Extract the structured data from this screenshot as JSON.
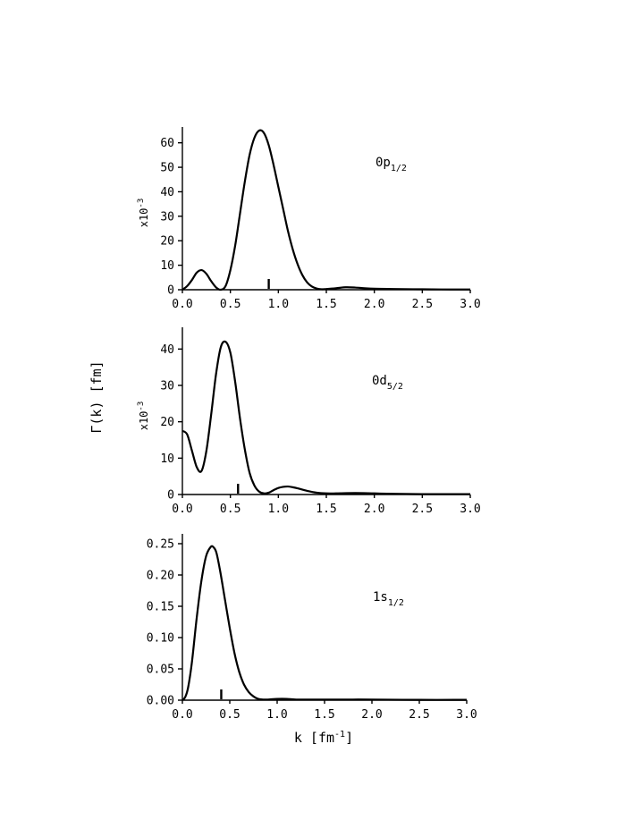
{
  "figure": {
    "ylabel": "Γ(k) [fm]",
    "xlabel": "k [fm",
    "xlabel_sup": "-1",
    "xlabel_close": "]"
  },
  "chart_data": [
    {
      "type": "line",
      "title": "0p",
      "title_sub": "1/2",
      "scale_text": "x10",
      "scale_sup": "-3",
      "xlim": [
        0,
        3.0
      ],
      "ylim": [
        0,
        65
      ],
      "xticks": [
        0.0,
        0.5,
        1.0,
        1.5,
        2.0,
        2.5,
        3.0
      ],
      "xtick_labels": [
        "0.0",
        "0.5",
        "1.0",
        "1.5",
        "2.0",
        "2.5",
        "3.0"
      ],
      "yticks": [
        0,
        10,
        20,
        30,
        40,
        50,
        60
      ],
      "ytick_labels": [
        "0",
        "10",
        "20",
        "30",
        "40",
        "50",
        "60"
      ],
      "marker_x": 0.9,
      "series": [
        {
          "x": [
            0.0,
            0.05,
            0.1,
            0.15,
            0.2,
            0.25,
            0.3,
            0.35,
            0.4,
            0.45,
            0.5,
            0.55,
            0.6,
            0.65,
            0.7,
            0.75,
            0.8,
            0.85,
            0.9,
            0.95,
            1.0,
            1.05,
            1.1,
            1.15,
            1.2,
            1.25,
            1.3,
            1.35,
            1.4,
            1.45,
            1.5,
            1.6,
            1.7,
            1.8,
            1.9,
            2.0,
            2.2,
            2.4,
            2.6,
            2.8,
            3.0
          ],
          "y": [
            0,
            1.5,
            4,
            7,
            8,
            6.5,
            3.5,
            1,
            0,
            1.5,
            8,
            18,
            31,
            44,
            55,
            62,
            65,
            64,
            59,
            51,
            42,
            33,
            24,
            16.5,
            10.5,
            6,
            3,
            1.3,
            0.5,
            0.2,
            0.3,
            0.6,
            1,
            0.9,
            0.6,
            0.4,
            0.3,
            0.2,
            0.15,
            0.1,
            0.1
          ]
        }
      ]
    },
    {
      "type": "line",
      "title": "0d",
      "title_sub": "5/2",
      "scale_text": "x10",
      "scale_sup": "-3",
      "xlim": [
        0,
        3.0
      ],
      "ylim": [
        0,
        45
      ],
      "xticks": [
        0.0,
        0.5,
        1.0,
        1.5,
        2.0,
        2.5,
        3.0
      ],
      "xtick_labels": [
        "0.0",
        "0.5",
        "1.0",
        "1.5",
        "2.0",
        "2.5",
        "3.0"
      ],
      "yticks": [
        0,
        10,
        20,
        30,
        40
      ],
      "ytick_labels": [
        "0",
        "10",
        "20",
        "30",
        "40"
      ],
      "marker_x": 0.58,
      "series": [
        {
          "x": [
            0.0,
            0.05,
            0.1,
            0.15,
            0.2,
            0.25,
            0.3,
            0.35,
            0.4,
            0.45,
            0.5,
            0.55,
            0.6,
            0.65,
            0.7,
            0.75,
            0.8,
            0.85,
            0.9,
            0.95,
            1.0,
            1.05,
            1.1,
            1.15,
            1.2,
            1.3,
            1.4,
            1.5,
            1.6,
            1.8,
            2.0,
            2.2,
            2.5,
            2.8,
            3.0
          ],
          "y": [
            17.5,
            16.5,
            12,
            7.5,
            6.5,
            12,
            22,
            33,
            40.5,
            42,
            39,
            31,
            21,
            12.5,
            6,
            2.5,
            0.8,
            0.3,
            0.5,
            1.2,
            1.8,
            2.1,
            2.2,
            2,
            1.7,
            1,
            0.5,
            0.3,
            0.3,
            0.4,
            0.3,
            0.2,
            0.1,
            0.1,
            0.1
          ]
        }
      ]
    },
    {
      "type": "line",
      "title": "1s",
      "title_sub": "1/2",
      "xlim": [
        0,
        3.0
      ],
      "ylim": [
        0,
        0.26
      ],
      "xticks": [
        0.0,
        0.5,
        1.0,
        1.5,
        2.0,
        2.5,
        3.0
      ],
      "xtick_labels": [
        "0.0",
        "0.5",
        "1.0",
        "1.5",
        "2.0",
        "2.5",
        "3.0"
      ],
      "yticks": [
        0,
        0.05,
        0.1,
        0.15,
        0.2,
        0.25
      ],
      "ytick_labels": [
        "0.00",
        "0.05",
        "0.10",
        "0.15",
        "0.20",
        "0.25"
      ],
      "marker_x": 0.41,
      "series": [
        {
          "x": [
            0.0,
            0.03,
            0.06,
            0.1,
            0.15,
            0.2,
            0.25,
            0.3,
            0.33,
            0.36,
            0.4,
            0.45,
            0.5,
            0.55,
            0.6,
            0.65,
            0.7,
            0.75,
            0.8,
            0.85,
            0.9,
            1.0,
            1.1,
            1.2,
            1.4,
            1.6,
            1.8,
            2.0,
            2.5,
            3.0
          ],
          "y": [
            0,
            0.005,
            0.02,
            0.06,
            0.13,
            0.19,
            0.23,
            0.245,
            0.244,
            0.235,
            0.205,
            0.16,
            0.115,
            0.075,
            0.045,
            0.025,
            0.013,
            0.006,
            0.002,
            0.001,
            0.001,
            0.002,
            0.002,
            0.001,
            0.001,
            0.001,
            0.001,
            0.001,
            0.0005,
            0.0005
          ]
        }
      ]
    }
  ]
}
